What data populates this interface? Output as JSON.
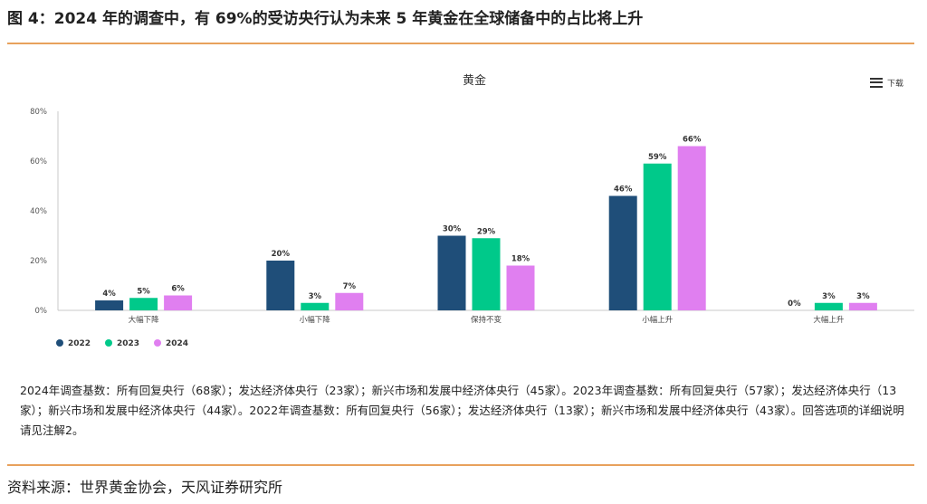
{
  "header": {
    "title": "图 4：2024 年的调查中，有 69%的受访央行认为未来 5 年黄金在全球储备中的占比将上升"
  },
  "toolbar": {
    "download_label": "下载",
    "icon": "menu-icon"
  },
  "chart_data": {
    "type": "bar",
    "title": "黄金",
    "categories": [
      "大幅下降",
      "小幅下降",
      "保持不变",
      "小幅上升",
      "大幅上升"
    ],
    "series": [
      {
        "name": "2022",
        "values": [
          4,
          20,
          30,
          46,
          0
        ],
        "color": "#1f4e79"
      },
      {
        "name": "2023",
        "values": [
          5,
          3,
          29,
          59,
          3
        ],
        "color": "#00c98a"
      },
      {
        "name": "2024",
        "values": [
          6,
          7,
          18,
          66,
          3
        ],
        "color": "#e07ff0"
      }
    ],
    "value_suffix": "%",
    "ylim": [
      0,
      80
    ],
    "yticks": [
      "0%",
      "20%",
      "40%",
      "60%",
      "80%"
    ],
    "ytick_values": [
      0,
      20,
      40,
      60,
      80
    ],
    "grid": false,
    "legend_position": "bottom-left"
  },
  "note": {
    "text": "2024年调查基数：所有回复央行（68家）；发达经济体央行（23家）；新兴市场和发展中经济体央行（45家）。2023年调查基数：所有回复央行（57家）；发达经济体央行（13家）；新兴市场和发展中经济体央行（44家）。2022年调查基数：所有回复央行（56家）；发达经济体央行（13家）；新兴市场和发展中经济体央行（43家）。回答选项的详细说明请见注解2。"
  },
  "source": {
    "text": "资料来源：世界黄金协会，天风证券研究所"
  }
}
